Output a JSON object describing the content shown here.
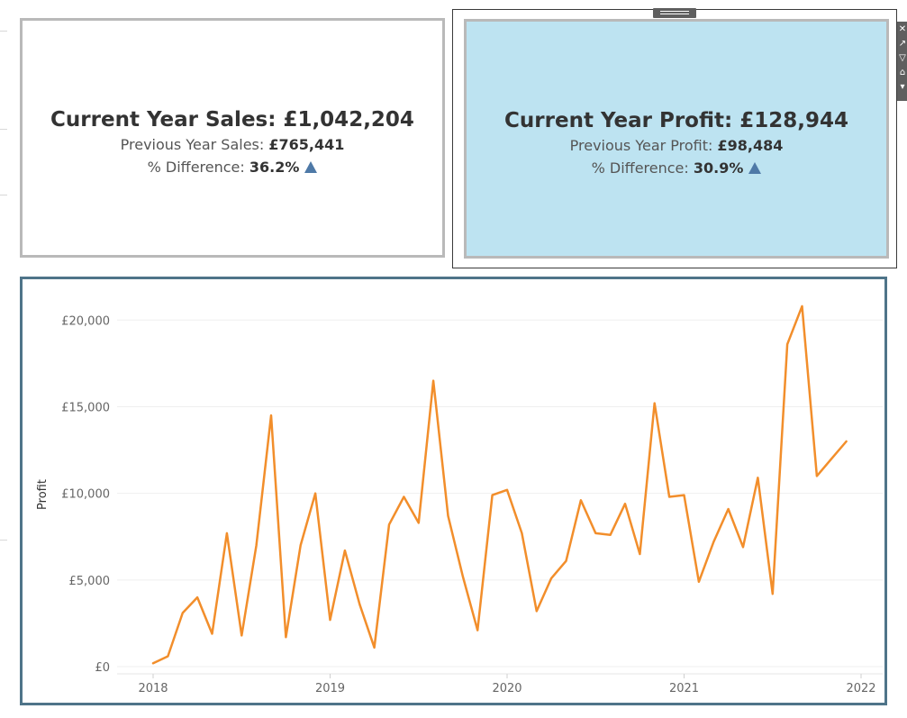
{
  "kpis": {
    "sales": {
      "title": "Current Year Sales: £1,042,204",
      "previous_label": "Previous Year Sales: ",
      "previous_value": "£765,441",
      "diff_label": "% Difference: ",
      "diff_value": "36.2%",
      "trend": "up"
    },
    "profit": {
      "title": "Current Year Profit: £128,944",
      "previous_label": "Previous Year Profit: ",
      "previous_value": "£98,484",
      "diff_label": "% Difference: ",
      "diff_value": "30.9%",
      "trend": "up"
    }
  },
  "toolbar": {
    "icons": [
      "close-icon",
      "popout-icon",
      "filter-icon",
      "pin-icon",
      "more-options-icon"
    ]
  },
  "colors": {
    "line": "#f28e2b",
    "profit_card_bg": "#bde3f1",
    "triangle": "#4e79a7",
    "chart_border": "#4f7489"
  },
  "chart_data": {
    "type": "line",
    "title": "",
    "xlabel": "",
    "ylabel": "Profit",
    "x_ticks": [
      "2018",
      "2019",
      "2020",
      "2021",
      "2022"
    ],
    "y_ticks": [
      "£0",
      "£5,000",
      "£10,000",
      "£15,000",
      "£20,000"
    ],
    "y_tick_values": [
      0,
      5000,
      10000,
      15000,
      20000
    ],
    "ylim": [
      0,
      20900
    ],
    "xlim": [
      "2017-11",
      "2022-01"
    ],
    "grid": true,
    "legend": "none",
    "series": [
      {
        "x": [
          "2018-01",
          "2018-02",
          "2018-03",
          "2018-04",
          "2018-05",
          "2018-06",
          "2018-07",
          "2018-08",
          "2018-09",
          "2018-10",
          "2018-11",
          "2018-12",
          "2019-01",
          "2019-02",
          "2019-03",
          "2019-04",
          "2019-05",
          "2019-06",
          "2019-07",
          "2019-08",
          "2019-09",
          "2019-10",
          "2019-11",
          "2019-12",
          "2020-01",
          "2020-02",
          "2020-03",
          "2020-04",
          "2020-05",
          "2020-06",
          "2020-07",
          "2020-08",
          "2020-09",
          "2020-10",
          "2020-11",
          "2020-12",
          "2021-01",
          "2021-02",
          "2021-03",
          "2021-04",
          "2021-05",
          "2021-06",
          "2021-07",
          "2021-08",
          "2021-09",
          "2021-10",
          "2021-11",
          "2021-12"
        ],
        "values": [
          200,
          600,
          3100,
          4000,
          1900,
          7700,
          1800,
          7000,
          14500,
          1700,
          7000,
          10000,
          2700,
          6700,
          3600,
          1100,
          8200,
          9800,
          8300,
          16500,
          8700,
          5200,
          2100,
          9900,
          10200,
          7700,
          3200,
          5100,
          6100,
          9600,
          7700,
          7600,
          9400,
          6500,
          15200,
          9800,
          9900,
          4900,
          7200,
          9100,
          6900,
          10900,
          4200,
          18600,
          20800,
          11000,
          12000,
          13000
        ]
      }
    ]
  }
}
